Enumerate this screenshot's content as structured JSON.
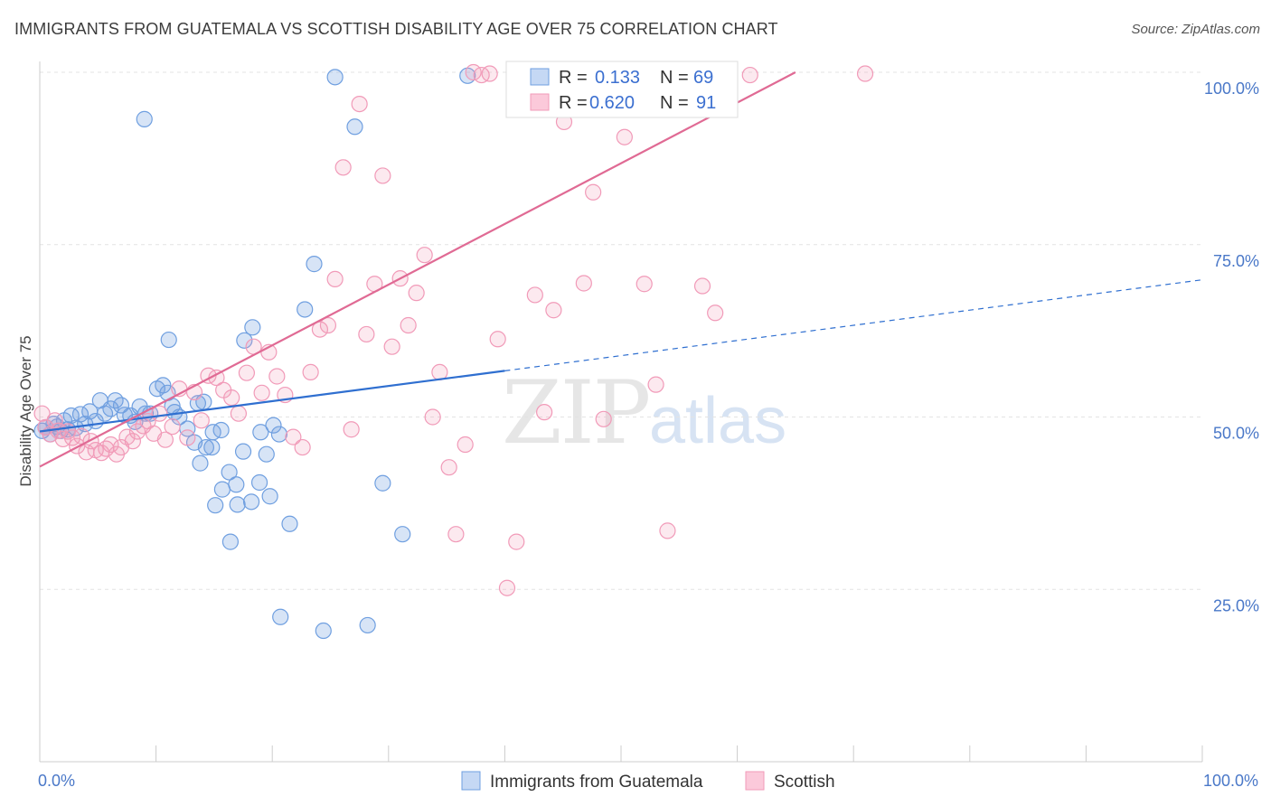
{
  "title": "IMMIGRANTS FROM GUATEMALA VS SCOTTISH DISABILITY AGE OVER 75 CORRELATION CHART",
  "source": "Source: ZipAtlas.com",
  "colors": {
    "blue": "#6f9fe0",
    "blue_line": "#2f6fd0",
    "pink": "#f19ab8",
    "pink_line": "#e06a94",
    "tick": "#4a78c8"
  },
  "chart_data": {
    "type": "scatter",
    "xlabel": "",
    "ylabel": "Disability Age Over 75",
    "xlim": [
      0,
      100
    ],
    "ylim": [
      0,
      100
    ],
    "x_tick_labels": [
      "0.0%",
      "100.0%"
    ],
    "y_ticks": [
      {
        "value": 25,
        "label": "25.0%"
      },
      {
        "value": 50,
        "label": "50.0%"
      },
      {
        "value": 75,
        "label": "75.0%"
      },
      {
        "value": 100,
        "label": "100.0%"
      }
    ],
    "grid": "horizontal dashed",
    "legend_stats": [
      {
        "r_label": "R = ",
        "r": "0.133",
        "n_label": "N = ",
        "n": "69"
      },
      {
        "r_label": "R = ",
        "r": "0.620",
        "n_label": "N = ",
        "n": "91"
      }
    ],
    "series": [
      {
        "name": "Immigrants from Guatemala",
        "trend": {
          "x0": 0,
          "y0": 47.9,
          "x1": 40,
          "y1": 56.7,
          "dash_to_x": 100,
          "dash_to_y": 69.9
        },
        "points": [
          [
            0.2,
            48
          ],
          [
            0.5,
            48.5
          ],
          [
            0.9,
            47.5
          ],
          [
            1.2,
            49
          ],
          [
            1.5,
            48.6
          ],
          [
            1.8,
            48
          ],
          [
            2.1,
            49.5
          ],
          [
            2.4,
            48.2
          ],
          [
            2.7,
            50.2
          ],
          [
            3.1,
            48.4
          ],
          [
            3.5,
            50.4
          ],
          [
            3.9,
            49
          ],
          [
            4.3,
            50.8
          ],
          [
            4.8,
            49.4
          ],
          [
            5.2,
            52.4
          ],
          [
            5.6,
            50.5
          ],
          [
            6.1,
            51.2
          ],
          [
            6.5,
            52.4
          ],
          [
            7.0,
            51.7
          ],
          [
            7.3,
            50.3
          ],
          [
            7.8,
            50.2
          ],
          [
            8.2,
            49.3
          ],
          [
            8.6,
            51.5
          ],
          [
            9.1,
            50.5
          ],
          [
            9.5,
            50.5
          ],
          [
            10.1,
            54.1
          ],
          [
            10.6,
            54.6
          ],
          [
            11.0,
            53.5
          ],
          [
            11.4,
            51.6
          ],
          [
            11.6,
            50.7
          ],
          [
            12.0,
            50.0
          ],
          [
            12.7,
            48.3
          ],
          [
            13.3,
            46.3
          ],
          [
            13.8,
            43.3
          ],
          [
            14.3,
            45.6
          ],
          [
            14.9,
            47.8
          ],
          [
            15.6,
            48.1
          ],
          [
            16.3,
            42.0
          ],
          [
            16.9,
            40.2
          ],
          [
            17.5,
            45.0
          ],
          [
            18.2,
            37.7
          ],
          [
            18.9,
            40.5
          ],
          [
            19.5,
            44.6
          ],
          [
            20.1,
            48.8
          ],
          [
            20.6,
            47.5
          ],
          [
            9.0,
            93.2
          ],
          [
            11.1,
            61.2
          ],
          [
            13.6,
            52.0
          ],
          [
            14.1,
            52.2
          ],
          [
            14.8,
            45.6
          ],
          [
            15.1,
            37.2
          ],
          [
            15.7,
            39.5
          ],
          [
            16.4,
            31.9
          ],
          [
            17.0,
            37.3
          ],
          [
            17.6,
            61.1
          ],
          [
            18.3,
            63.0
          ],
          [
            19.0,
            47.8
          ],
          [
            19.8,
            38.5
          ],
          [
            20.7,
            21.0
          ],
          [
            21.5,
            34.5
          ],
          [
            22.8,
            65.6
          ],
          [
            23.6,
            72.2
          ],
          [
            24.4,
            19.0
          ],
          [
            25.4,
            99.3
          ],
          [
            27.1,
            92.1
          ],
          [
            28.2,
            19.8
          ],
          [
            29.5,
            40.4
          ],
          [
            31.2,
            33.0
          ],
          [
            36.8,
            99.5
          ]
        ]
      },
      {
        "name": "Scottish",
        "trend": {
          "x0": 0,
          "y0": 42.8,
          "x1": 65,
          "y1": 100
        },
        "points": [
          [
            0.2,
            50.5
          ],
          [
            0.5,
            48.5
          ],
          [
            0.9,
            47.5
          ],
          [
            1.3,
            49.5
          ],
          [
            1.6,
            48.0
          ],
          [
            2.0,
            46.8
          ],
          [
            2.4,
            47.9
          ],
          [
            2.8,
            47.0
          ],
          [
            3.2,
            45.8
          ],
          [
            3.6,
            47.2
          ],
          [
            4.0,
            44.9
          ],
          [
            4.4,
            46.5
          ],
          [
            4.8,
            45.2
          ],
          [
            5.3,
            44.8
          ],
          [
            5.7,
            45.4
          ],
          [
            6.1,
            46.0
          ],
          [
            6.6,
            44.6
          ],
          [
            7.0,
            45.6
          ],
          [
            7.5,
            47.1
          ],
          [
            8.0,
            46.5
          ],
          [
            8.4,
            47.9
          ],
          [
            8.9,
            48.7
          ],
          [
            9.3,
            49.4
          ],
          [
            9.8,
            47.6
          ],
          [
            10.3,
            50.5
          ],
          [
            10.8,
            46.7
          ],
          [
            11.4,
            48.6
          ],
          [
            12.0,
            54.1
          ],
          [
            12.7,
            47.0
          ],
          [
            13.3,
            53.6
          ],
          [
            13.9,
            49.5
          ],
          [
            14.5,
            56.0
          ],
          [
            15.2,
            55.7
          ],
          [
            15.8,
            53.9
          ],
          [
            16.5,
            52.8
          ],
          [
            17.1,
            50.5
          ],
          [
            17.8,
            56.4
          ],
          [
            18.4,
            60.2
          ],
          [
            19.1,
            53.5
          ],
          [
            19.7,
            59.4
          ],
          [
            20.4,
            55.9
          ],
          [
            21.1,
            53.2
          ],
          [
            21.8,
            47.1
          ],
          [
            22.6,
            45.6
          ],
          [
            23.3,
            56.5
          ],
          [
            24.1,
            62.7
          ],
          [
            24.8,
            63.3
          ],
          [
            25.4,
            70.0
          ],
          [
            26.1,
            86.2
          ],
          [
            26.8,
            48.2
          ],
          [
            27.5,
            95.4
          ],
          [
            28.1,
            62.0
          ],
          [
            28.8,
            69.3
          ],
          [
            29.5,
            85.0
          ],
          [
            30.3,
            60.2
          ],
          [
            31.0,
            70.1
          ],
          [
            31.7,
            63.3
          ],
          [
            32.4,
            68.0
          ],
          [
            33.1,
            73.5
          ],
          [
            33.8,
            50.0
          ],
          [
            34.4,
            56.5
          ],
          [
            35.2,
            42.7
          ],
          [
            35.8,
            33.0
          ],
          [
            36.6,
            46.0
          ],
          [
            37.3,
            100.0
          ],
          [
            38.0,
            99.6
          ],
          [
            38.7,
            99.8
          ],
          [
            39.4,
            61.3
          ],
          [
            40.2,
            25.2
          ],
          [
            41.0,
            31.9
          ],
          [
            41.8,
            99.8
          ],
          [
            42.6,
            67.7
          ],
          [
            43.4,
            50.7
          ],
          [
            44.2,
            65.5
          ],
          [
            45.1,
            92.8
          ],
          [
            45.9,
            94.6
          ],
          [
            46.8,
            69.4
          ],
          [
            47.6,
            82.6
          ],
          [
            48.5,
            49.7
          ],
          [
            49.4,
            99.8
          ],
          [
            50.3,
            90.6
          ],
          [
            51.1,
            99.5
          ],
          [
            52.0,
            69.3
          ],
          [
            53.0,
            54.7
          ],
          [
            54.0,
            33.5
          ],
          [
            55.0,
            98.9
          ],
          [
            56.0,
            99.6
          ],
          [
            57.0,
            69.0
          ],
          [
            58.1,
            65.1
          ],
          [
            61.1,
            99.6
          ],
          [
            71.0,
            99.8
          ]
        ]
      }
    ]
  }
}
